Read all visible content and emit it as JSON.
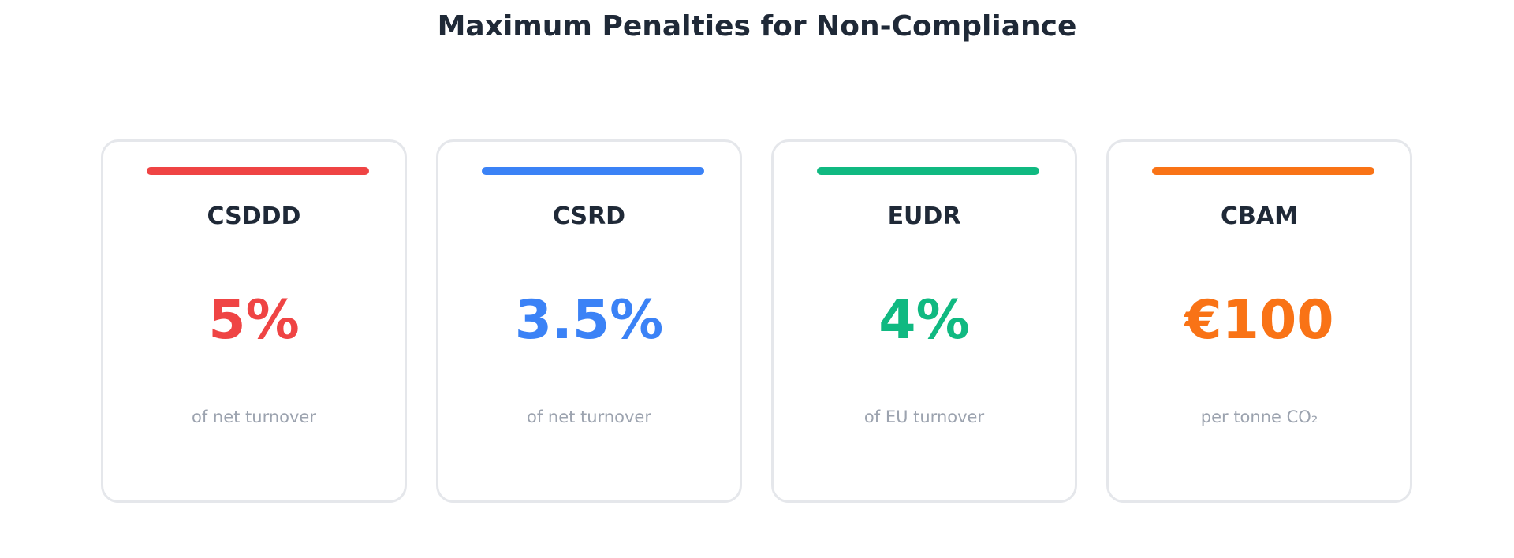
{
  "title": "Maximum Penalties for Non-Compliance",
  "cards": [
    {
      "name": "CSDDD",
      "value": "5%",
      "note": "of net turnover",
      "color": "#ef4444"
    },
    {
      "name": "CSRD",
      "value": "3.5%",
      "note": "of net turnover",
      "color": "#3b82f6"
    },
    {
      "name": "EUDR",
      "value": "4%",
      "note": "of EU turnover",
      "color": "#10b981"
    },
    {
      "name": "CBAM",
      "value": "€100",
      "note": "per tonne CO₂",
      "color": "#f97316"
    }
  ]
}
